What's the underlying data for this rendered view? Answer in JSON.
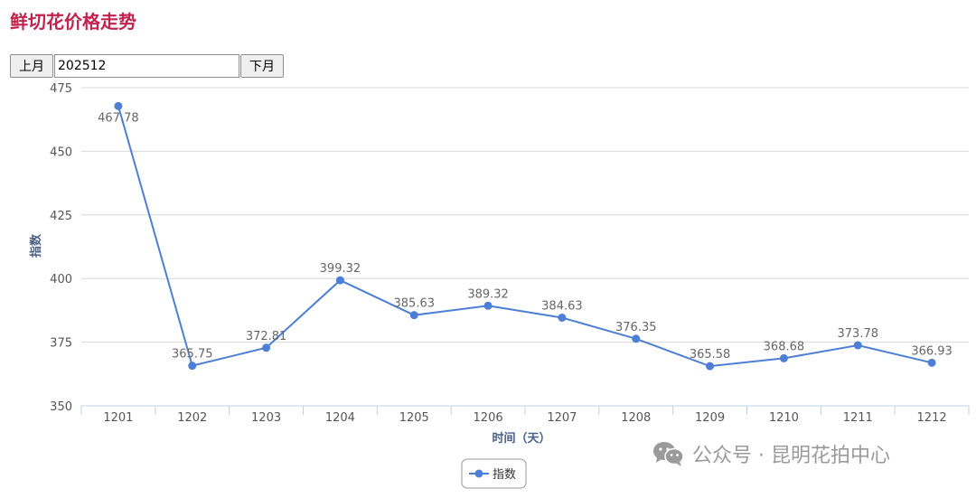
{
  "page": {
    "title": "鲜切花价格走势",
    "prev_month_label": "上月",
    "month_value": "202512",
    "next_month_label": "下月"
  },
  "watermark": {
    "text": "公众号 · 昆明花拍中心",
    "icon": "wechat-icon"
  },
  "colors": {
    "title": "#c1234e",
    "series": "#4d7fd6",
    "grid": "#d8d8d8",
    "axis_title": "#4a6087",
    "label": "#666666"
  },
  "chart_data": {
    "type": "line",
    "title": "",
    "xlabel": "时间（天）",
    "ylabel": "指数",
    "x": [
      "1201",
      "1202",
      "1203",
      "1204",
      "1205",
      "1206",
      "1207",
      "1208",
      "1209",
      "1210",
      "1211",
      "1212"
    ],
    "series": [
      {
        "name": "指数",
        "values": [
          467.78,
          365.75,
          372.81,
          399.32,
          385.63,
          389.32,
          384.63,
          376.35,
          365.58,
          368.68,
          373.78,
          366.93
        ]
      }
    ],
    "ylim": [
      350,
      475
    ],
    "yticks": [
      350,
      375,
      400,
      425,
      450,
      475
    ],
    "grid": true,
    "legend_position": "bottom-center",
    "data_labels": true
  }
}
